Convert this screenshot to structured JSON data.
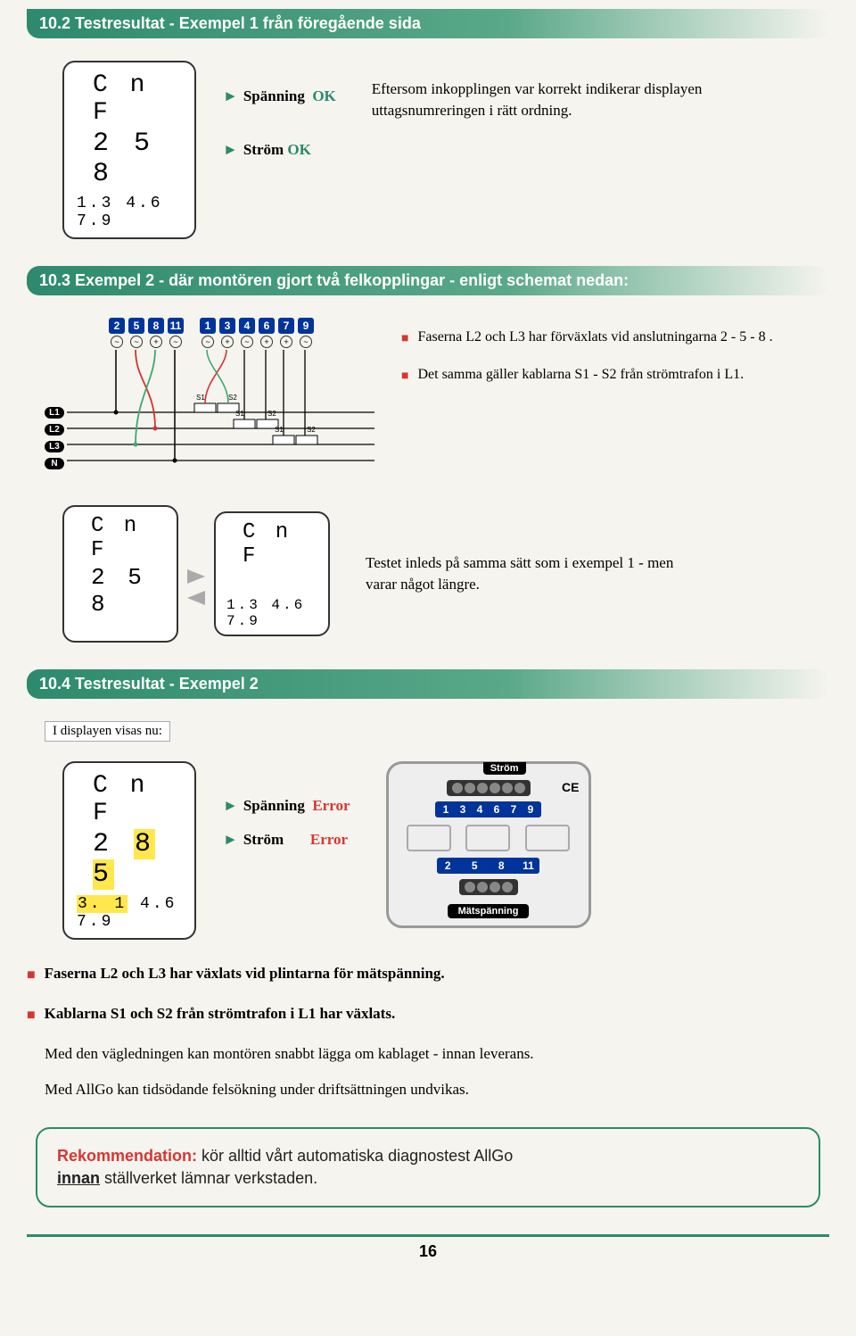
{
  "sections": {
    "s1_title": "10.2  Testresultat - Exempel 1 från föregående sida",
    "s2_title": "10.3  Exempel 2  - där montören gjort två felkopplingar - enligt schemat nedan:",
    "s3_title": "10.4 Testresultat - Exempel 2"
  },
  "lcd1": {
    "l1": "C n F",
    "l2": "2 5 8",
    "l3": "1.3  4.6  7.9"
  },
  "lcd2a": {
    "l1": "C n F",
    "l2": "2 5 8"
  },
  "lcd2b": {
    "l1": "C n F",
    "l3": "1.3  4.6  7.9"
  },
  "lcd3": {
    "l1": "C n F",
    "l2_pre": "2 ",
    "l2_hl": "8 5",
    "l3_pre": "3. 1",
    "l3_rest": "  4.6  7.9"
  },
  "status1": {
    "sp": "Spänning",
    "sp_v": "OK",
    "st": "Ström",
    "st_v": "OK"
  },
  "status2": {
    "sp": "Spänning",
    "sp_v": "Error",
    "st": "Ström",
    "st_v": "Error"
  },
  "desc1": "Eftersom inkopplingen var korrekt indikerar displayen uttagsnumreringen i rätt ordning.",
  "wiring": {
    "top_terms": [
      "2",
      "5",
      "8",
      "11",
      "1",
      "3",
      "4",
      "6",
      "7",
      "9"
    ],
    "bus": [
      "L1",
      "L2",
      "L3",
      "N"
    ],
    "ct": "S1",
    "ct2": "S2"
  },
  "bullets2": [
    "Faserna L2 och L3 har förväxlats vid anslutningarna 2 - 5 - 8 .",
    "Det samma gäller kablarna S1 - S2 från strömtrafon i L1."
  ],
  "desc2": "Testet inleds på samma sätt som i exempel 1 - men varar något längre.",
  "sub_label": "I displayen visas nu:",
  "device": {
    "top": "Ström",
    "bot": "Mätspänning",
    "nums_top": [
      "1",
      "3",
      "4",
      "6",
      "7",
      "9"
    ],
    "nums_bot": [
      "2",
      "5",
      "8",
      "11"
    ]
  },
  "bullets3": [
    "Faserna L2 och L3  har växlats vid plintarna för mätspänning.",
    "Kablarna S1 och S2 från strömtrafon i L1 har växlats."
  ],
  "body1": "Med den vägledningen kan montören snabbt lägga om kablaget - innan leverans.",
  "body2": "Med AllGo kan tidsödande felsökning under driftsättningen undvikas.",
  "rec": {
    "k": "Rekommendation:",
    "t1": " kör alltid vårt automatiska diagnostest AllGo ",
    "u": "innan",
    "t2": " ställverket lämnar verkstaden."
  },
  "page_num": "16",
  "colors": {
    "green": "#2d8a6c",
    "red": "#d63633",
    "blue": "#00349b",
    "wire_red": "#d4322f",
    "wire_green": "#3fa870",
    "wire_black": "#000"
  }
}
